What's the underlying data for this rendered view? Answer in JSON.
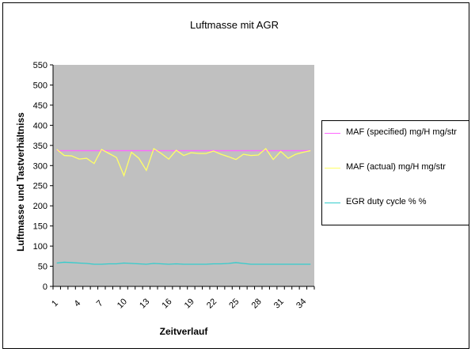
{
  "chart_data": {
    "type": "line",
    "title": "Luftmasse mit AGR",
    "xlabel": "Zeitverlauf",
    "ylabel": "Luftmasse und Tastverhältniss",
    "ylim": [
      0,
      550
    ],
    "yticks": [
      0,
      50,
      100,
      150,
      200,
      250,
      300,
      350,
      400,
      450,
      500,
      550
    ],
    "x": [
      1,
      2,
      3,
      4,
      5,
      6,
      7,
      8,
      9,
      10,
      11,
      12,
      13,
      14,
      15,
      16,
      17,
      18,
      19,
      20,
      21,
      22,
      23,
      24,
      25,
      26,
      27,
      28,
      29,
      30,
      31,
      32,
      33,
      34,
      35
    ],
    "xtick_labels": [
      "1",
      "4",
      "7",
      "10",
      "13",
      "16",
      "19",
      "22",
      "25",
      "28",
      "31",
      "34"
    ],
    "plot_background": "#c0c0c0",
    "grid": false,
    "legend_position": "right",
    "series": [
      {
        "name": "MAF (specified) mg/H mg/str",
        "color": "#ff66ff",
        "values": [
          337,
          337,
          337,
          337,
          337,
          337,
          337,
          337,
          337,
          337,
          337,
          337,
          337,
          337,
          337,
          337,
          337,
          337,
          337,
          337,
          337,
          337,
          337,
          337,
          337,
          337,
          337,
          337,
          337,
          337,
          337,
          337,
          337,
          337,
          337
        ]
      },
      {
        "name": "MAF (actual) mg/H  mg/str",
        "color": "#ffff66",
        "values": [
          340,
          325,
          324,
          316,
          318,
          305,
          340,
          330,
          320,
          275,
          333,
          318,
          288,
          342,
          330,
          316,
          338,
          325,
          332,
          330,
          330,
          336,
          328,
          322,
          315,
          328,
          325,
          326,
          342,
          315,
          335,
          318,
          328,
          333,
          337
        ]
      },
      {
        "name": "EGR duty cycle %  %",
        "color": "#33cccc",
        "values": [
          58,
          60,
          59,
          58,
          57,
          55,
          55,
          56,
          56,
          58,
          57,
          56,
          55,
          57,
          56,
          55,
          56,
          55,
          55,
          55,
          55,
          56,
          56,
          57,
          59,
          57,
          55,
          55,
          55,
          55,
          55,
          55,
          55,
          55,
          55
        ]
      }
    ]
  }
}
